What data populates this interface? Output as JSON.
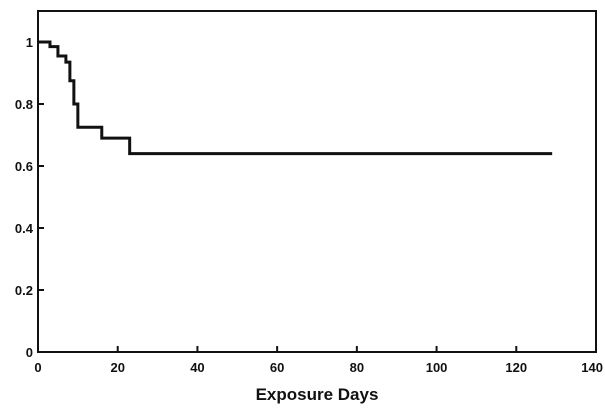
{
  "chart_data": {
    "type": "line",
    "title": "",
    "xlabel": "Exposure Days",
    "ylabel": "",
    "xlim": [
      0,
      140
    ],
    "ylim": [
      0,
      1.1
    ],
    "x_ticks": [
      0,
      20,
      40,
      60,
      80,
      100,
      120,
      140
    ],
    "y_ticks": [
      0,
      0.2,
      0.4,
      0.6,
      0.8,
      1
    ],
    "x_tick_labels": [
      "0",
      "20",
      "40",
      "60",
      "80",
      "100",
      "120",
      "140"
    ],
    "y_tick_labels": [
      "0",
      "0.2",
      "0.4",
      "0.6",
      "0.8",
      "1"
    ],
    "grid": false,
    "legend": "none",
    "line_color": "#111111",
    "series": [
      {
        "step": "post",
        "x": [
          0,
          3,
          5,
          7,
          8,
          9,
          10,
          16,
          23,
          129
        ],
        "y": [
          1,
          0.985,
          0.955,
          0.935,
          0.875,
          0.8,
          0.725,
          0.69,
          0.64,
          0.64
        ]
      }
    ]
  }
}
